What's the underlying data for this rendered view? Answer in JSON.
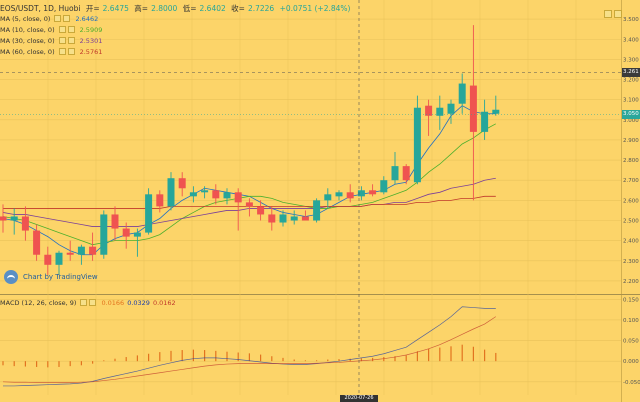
{
  "header": {
    "symbol": "EOS/USDT, 1D, Huobi",
    "open_label": "开=",
    "open": "2.6475",
    "high_label": "高=",
    "high": "2.8000",
    "low_label": "低=",
    "low": "2.6402",
    "close_label": "收=",
    "close": "2.7226",
    "change": "+0.0751 (+2.84%)"
  },
  "indicators": [
    {
      "name": "MA (5, close, 0)",
      "value": "2.6462",
      "color": "#1f6fc4"
    },
    {
      "name": "MA (10, close, 0)",
      "value": "2.5909",
      "color": "#4caf2c"
    },
    {
      "name": "MA (30, close, 0)",
      "value": "2.5301",
      "color": "#7b3f98"
    },
    {
      "name": "MA (60, close, 0)",
      "value": "2.5761",
      "color": "#c0392b"
    }
  ],
  "price_tags": [
    {
      "text": "3.261",
      "color": "#3a3a3a"
    },
    {
      "text": "3.050",
      "color": "#2aa79b"
    }
  ],
  "crosshair_date": "2020-07-26",
  "watermark": "Chart by TradingView",
  "macd_legend": {
    "name": "MACD (12, 26, close, 9)",
    "v1": "0.0166",
    "c1": "#e2731f",
    "v2": "0.0329",
    "c2": "#1f3fa8",
    "v3": "0.0162",
    "c3": "#c0392b"
  },
  "colors": {
    "background": "#fcd469",
    "up": "#26a69a",
    "down": "#ef5350",
    "grid": "#e9c25a"
  },
  "chart_data": [
    {
      "type": "candlestick",
      "title": "EOS/USDT, 1D, Huobi",
      "y_ticks": [
        "3.500",
        "3.400",
        "3.300",
        "3.200",
        "3.100",
        "3.000",
        "2.900",
        "2.800",
        "2.700",
        "2.600",
        "2.500",
        "2.400",
        "2.300",
        "2.200"
      ],
      "ylim": [
        2.14,
        3.58
      ],
      "candles": [
        {
          "o": 2.52,
          "h": 2.58,
          "l": 2.44,
          "c": 2.5
        },
        {
          "o": 2.5,
          "h": 2.56,
          "l": 2.43,
          "c": 2.52
        },
        {
          "o": 2.52,
          "h": 2.57,
          "l": 2.4,
          "c": 2.45
        },
        {
          "o": 2.45,
          "h": 2.48,
          "l": 2.3,
          "c": 2.33
        },
        {
          "o": 2.33,
          "h": 2.37,
          "l": 2.23,
          "c": 2.28
        },
        {
          "o": 2.28,
          "h": 2.35,
          "l": 2.23,
          "c": 2.34
        },
        {
          "o": 2.34,
          "h": 2.4,
          "l": 2.3,
          "c": 2.33
        },
        {
          "o": 2.33,
          "h": 2.38,
          "l": 2.28,
          "c": 2.37
        },
        {
          "o": 2.37,
          "h": 2.44,
          "l": 2.3,
          "c": 2.33
        },
        {
          "o": 2.33,
          "h": 2.55,
          "l": 2.31,
          "c": 2.53
        },
        {
          "o": 2.53,
          "h": 2.57,
          "l": 2.4,
          "c": 2.46
        },
        {
          "o": 2.46,
          "h": 2.49,
          "l": 2.36,
          "c": 2.42
        },
        {
          "o": 2.42,
          "h": 2.46,
          "l": 2.32,
          "c": 2.44
        },
        {
          "o": 2.44,
          "h": 2.66,
          "l": 2.43,
          "c": 2.63
        },
        {
          "o": 2.63,
          "h": 2.65,
          "l": 2.54,
          "c": 2.57
        },
        {
          "o": 2.57,
          "h": 2.74,
          "l": 2.55,
          "c": 2.71
        },
        {
          "o": 2.71,
          "h": 2.74,
          "l": 2.62,
          "c": 2.66
        },
        {
          "o": 2.62,
          "h": 2.67,
          "l": 2.59,
          "c": 2.64
        },
        {
          "o": 2.64,
          "h": 2.67,
          "l": 2.61,
          "c": 2.65
        },
        {
          "o": 2.65,
          "h": 2.68,
          "l": 2.58,
          "c": 2.61
        },
        {
          "o": 2.61,
          "h": 2.66,
          "l": 2.58,
          "c": 2.64
        },
        {
          "o": 2.64,
          "h": 2.66,
          "l": 2.45,
          "c": 2.59
        },
        {
          "o": 2.59,
          "h": 2.61,
          "l": 2.52,
          "c": 2.57
        },
        {
          "o": 2.57,
          "h": 2.6,
          "l": 2.5,
          "c": 2.53
        },
        {
          "o": 2.53,
          "h": 2.57,
          "l": 2.45,
          "c": 2.49
        },
        {
          "o": 2.49,
          "h": 2.55,
          "l": 2.47,
          "c": 2.53
        },
        {
          "o": 2.5,
          "h": 2.55,
          "l": 2.48,
          "c": 2.52
        },
        {
          "o": 2.52,
          "h": 2.55,
          "l": 2.5,
          "c": 2.5
        },
        {
          "o": 2.5,
          "h": 2.61,
          "l": 2.49,
          "c": 2.6
        },
        {
          "o": 2.6,
          "h": 2.66,
          "l": 2.56,
          "c": 2.63
        },
        {
          "o": 2.62,
          "h": 2.65,
          "l": 2.6,
          "c": 2.64
        },
        {
          "o": 2.64,
          "h": 2.68,
          "l": 2.59,
          "c": 2.61
        },
        {
          "o": 2.62,
          "h": 2.67,
          "l": 2.6,
          "c": 2.65
        },
        {
          "o": 2.65,
          "h": 2.68,
          "l": 2.62,
          "c": 2.63
        },
        {
          "o": 2.64,
          "h": 2.72,
          "l": 2.63,
          "c": 2.7
        },
        {
          "o": 2.7,
          "h": 2.84,
          "l": 2.68,
          "c": 2.77
        },
        {
          "o": 2.77,
          "h": 2.78,
          "l": 2.68,
          "c": 2.7
        },
        {
          "o": 2.69,
          "h": 3.12,
          "l": 2.68,
          "c": 3.06
        },
        {
          "o": 3.07,
          "h": 3.1,
          "l": 2.92,
          "c": 3.02
        },
        {
          "o": 3.02,
          "h": 3.12,
          "l": 2.95,
          "c": 3.06
        },
        {
          "o": 3.03,
          "h": 3.1,
          "l": 2.98,
          "c": 3.08
        },
        {
          "o": 3.08,
          "h": 3.23,
          "l": 3.03,
          "c": 3.18
        },
        {
          "o": 3.17,
          "h": 3.47,
          "l": 2.6,
          "c": 2.94
        },
        {
          "o": 2.94,
          "h": 3.1,
          "l": 2.9,
          "c": 3.04
        },
        {
          "o": 3.03,
          "h": 3.12,
          "l": 3.02,
          "c": 3.05
        }
      ],
      "series": [
        {
          "name": "MA (5, close, 0)",
          "values": [
            2.51,
            2.5,
            2.48,
            2.45,
            2.42,
            2.38,
            2.35,
            2.33,
            2.33,
            2.38,
            2.41,
            2.43,
            2.44,
            2.48,
            2.51,
            2.56,
            2.6,
            2.63,
            2.66,
            2.65,
            2.64,
            2.63,
            2.62,
            2.59,
            2.56,
            2.54,
            2.53,
            2.52,
            2.53,
            2.56,
            2.59,
            2.62,
            2.63,
            2.64,
            2.65,
            2.68,
            2.69,
            2.78,
            2.86,
            2.93,
            3.02,
            3.07,
            3.04,
            3.03,
            3.03
          ]
        },
        {
          "name": "MA (10, close, 0)",
          "values": [
            2.52,
            2.51,
            2.5,
            2.48,
            2.46,
            2.44,
            2.42,
            2.4,
            2.38,
            2.39,
            2.4,
            2.4,
            2.4,
            2.41,
            2.43,
            2.47,
            2.51,
            2.54,
            2.57,
            2.59,
            2.6,
            2.61,
            2.62,
            2.62,
            2.61,
            2.59,
            2.58,
            2.57,
            2.56,
            2.56,
            2.57,
            2.57,
            2.58,
            2.59,
            2.61,
            2.63,
            2.65,
            2.69,
            2.74,
            2.78,
            2.83,
            2.88,
            2.91,
            2.95,
            2.98
          ]
        },
        {
          "name": "MA (30, close, 0)",
          "values": [
            2.54,
            2.53,
            2.53,
            2.52,
            2.51,
            2.5,
            2.49,
            2.48,
            2.47,
            2.47,
            2.47,
            2.47,
            2.47,
            2.48,
            2.49,
            2.5,
            2.51,
            2.52,
            2.53,
            2.54,
            2.55,
            2.55,
            2.56,
            2.56,
            2.56,
            2.56,
            2.56,
            2.56,
            2.56,
            2.57,
            2.57,
            2.57,
            2.57,
            2.58,
            2.58,
            2.59,
            2.59,
            2.61,
            2.63,
            2.64,
            2.66,
            2.67,
            2.68,
            2.7,
            2.71
          ]
        },
        {
          "name": "MA (60, close, 0)",
          "values": [
            2.56,
            2.56,
            2.56,
            2.56,
            2.56,
            2.56,
            2.56,
            2.56,
            2.56,
            2.56,
            2.56,
            2.56,
            2.56,
            2.56,
            2.56,
            2.57,
            2.57,
            2.57,
            2.57,
            2.57,
            2.57,
            2.57,
            2.57,
            2.57,
            2.57,
            2.57,
            2.57,
            2.57,
            2.57,
            2.57,
            2.57,
            2.57,
            2.57,
            2.58,
            2.58,
            2.58,
            2.58,
            2.59,
            2.59,
            2.6,
            2.6,
            2.61,
            2.61,
            2.62,
            2.62
          ]
        }
      ]
    },
    {
      "type": "bar+line",
      "title": "MACD (12, 26, close, 9)",
      "y_ticks": [
        "0.150",
        "0.100",
        "0.050",
        "0.000",
        "-0.050"
      ],
      "ylim": [
        -0.082,
        0.158
      ],
      "series": [
        {
          "name": "0.0166",
          "kind": "histogram",
          "values": [
            -0.01,
            -0.012,
            -0.013,
            -0.014,
            -0.015,
            -0.014,
            -0.012,
            -0.01,
            -0.006,
            0.002,
            0.006,
            0.01,
            0.014,
            0.018,
            0.022,
            0.025,
            0.027,
            0.028,
            0.027,
            0.025,
            0.023,
            0.021,
            0.019,
            0.016,
            0.012,
            0.008,
            0.004,
            0.002,
            0.002,
            0.004,
            0.005,
            0.006,
            0.007,
            0.008,
            0.01,
            0.012,
            0.014,
            0.024,
            0.03,
            0.033,
            0.036,
            0.04,
            0.035,
            0.028,
            0.02
          ]
        },
        {
          "name": "0.0329",
          "kind": "line",
          "values": [
            -0.06,
            -0.06,
            -0.059,
            -0.058,
            -0.057,
            -0.056,
            -0.055,
            -0.053,
            -0.049,
            -0.042,
            -0.036,
            -0.03,
            -0.024,
            -0.017,
            -0.01,
            -0.004,
            0.002,
            0.006,
            0.008,
            0.008,
            0.006,
            0.004,
            0.001,
            -0.002,
            -0.005,
            -0.007,
            -0.008,
            -0.008,
            -0.006,
            -0.003,
            0.0,
            0.004,
            0.008,
            0.012,
            0.018,
            0.026,
            0.034,
            0.052,
            0.07,
            0.088,
            0.108,
            0.132,
            0.13,
            0.128,
            0.128
          ]
        },
        {
          "name": "0.0162",
          "kind": "line",
          "values": [
            -0.05,
            -0.051,
            -0.051,
            -0.052,
            -0.052,
            -0.052,
            -0.052,
            -0.051,
            -0.05,
            -0.047,
            -0.044,
            -0.04,
            -0.036,
            -0.032,
            -0.028,
            -0.024,
            -0.02,
            -0.016,
            -0.012,
            -0.009,
            -0.007,
            -0.006,
            -0.006,
            -0.006,
            -0.006,
            -0.006,
            -0.006,
            -0.006,
            -0.005,
            -0.004,
            -0.003,
            -0.001,
            0.001,
            0.003,
            0.006,
            0.01,
            0.015,
            0.022,
            0.03,
            0.04,
            0.052,
            0.065,
            0.078,
            0.09,
            0.108
          ]
        }
      ]
    }
  ]
}
